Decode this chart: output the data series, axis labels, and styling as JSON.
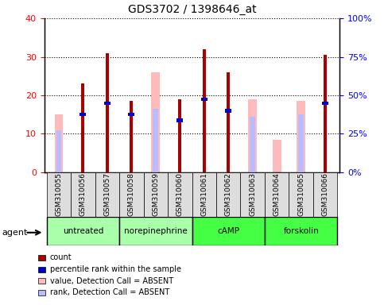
{
  "title": "GDS3702 / 1398646_at",
  "samples": [
    "GSM310055",
    "GSM310056",
    "GSM310057",
    "GSM310058",
    "GSM310059",
    "GSM310060",
    "GSM310061",
    "GSM310062",
    "GSM310063",
    "GSM310064",
    "GSM310065",
    "GSM310066"
  ],
  "count_values": [
    0,
    23,
    31,
    18.5,
    0,
    19,
    32,
    26,
    0,
    0,
    0,
    30.5
  ],
  "percentile_values": [
    0,
    15,
    18,
    15,
    0,
    13.5,
    19,
    16,
    0,
    0,
    0,
    18
  ],
  "value_absent": [
    15,
    0,
    0,
    0,
    26,
    0,
    0,
    0,
    19,
    8.5,
    18.5,
    0
  ],
  "rank_absent": [
    11,
    0,
    0,
    0,
    16.5,
    0,
    0,
    0,
    14.5,
    0,
    15,
    0
  ],
  "ylim": [
    0,
    40
  ],
  "yticks": [
    0,
    10,
    20,
    30,
    40
  ],
  "ytick_labels_left": [
    "0",
    "10",
    "20",
    "30",
    "40"
  ],
  "ytick_labels_right": [
    "0%",
    "25%",
    "50%",
    "75%",
    "100%"
  ],
  "group_bounds": [
    [
      0,
      2,
      "untreated",
      "#aaffaa"
    ],
    [
      3,
      5,
      "norepinephrine",
      "#aaffaa"
    ],
    [
      6,
      8,
      "cAMP",
      "#44ff44"
    ],
    [
      9,
      11,
      "forskolin",
      "#44ff44"
    ]
  ],
  "color_count": "#aa0000",
  "color_percentile": "#0000cc",
  "color_value_absent": "#ffbbbb",
  "color_rank_absent": "#bbbbff",
  "agent_label": "agent",
  "bg_sample": "#dddddd",
  "count_bar_width": 0.12,
  "absent_bar_width": 0.35
}
